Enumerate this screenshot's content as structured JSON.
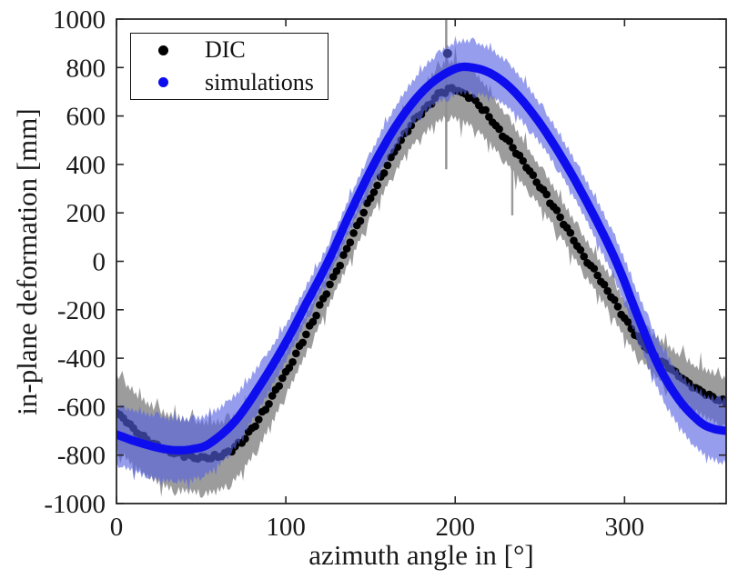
{
  "chart_data": {
    "type": "scatter",
    "title": "",
    "xlabel": "azimuth angle in [°]",
    "ylabel": "in-plane deformation [mm]",
    "xlim": [
      0,
      360
    ],
    "ylim": [
      -1000,
      1000
    ],
    "x_ticks": [
      0,
      100,
      200,
      300
    ],
    "y_ticks": [
      1000,
      800,
      600,
      400,
      200,
      0,
      -200,
      -400,
      -600,
      -800,
      -1000
    ],
    "grid": false,
    "axis_color": "#262626",
    "legend": {
      "position": "top-left",
      "items": [
        {
          "label": "DIC",
          "marker_color": "#000000"
        },
        {
          "label": "simulations",
          "marker_color": "#0d0dee"
        }
      ]
    },
    "series": [
      {
        "name": "DIC",
        "style": "dots-with-noisy-band",
        "color": "#000000",
        "band_color": "#9c9c9c",
        "mean_points": [
          [
            0,
            -620
          ],
          [
            10,
            -690
          ],
          [
            20,
            -745
          ],
          [
            32,
            -785
          ],
          [
            45,
            -805
          ],
          [
            58,
            -808
          ],
          [
            70,
            -770
          ],
          [
            85,
            -640
          ],
          [
            100,
            -460
          ],
          [
            112,
            -300
          ],
          [
            125,
            -115
          ],
          [
            140,
            110
          ],
          [
            155,
            330
          ],
          [
            170,
            520
          ],
          [
            182,
            630
          ],
          [
            195,
            708
          ],
          [
            205,
            690
          ],
          [
            215,
            638
          ],
          [
            230,
            505
          ],
          [
            245,
            360
          ],
          [
            260,
            205
          ],
          [
            275,
            35
          ],
          [
            290,
            -120
          ],
          [
            305,
            -290
          ],
          [
            318,
            -390
          ],
          [
            330,
            -460
          ],
          [
            343,
            -530
          ],
          [
            352,
            -560
          ],
          [
            360,
            -585
          ]
        ],
        "band_halfwidth": [
          [
            0,
            160
          ],
          [
            30,
            155
          ],
          [
            60,
            145
          ],
          [
            90,
            105
          ],
          [
            120,
            75
          ],
          [
            150,
            78
          ],
          [
            180,
            100
          ],
          [
            200,
            120
          ],
          [
            220,
            110
          ],
          [
            250,
            85
          ],
          [
            280,
            75
          ],
          [
            310,
            80
          ],
          [
            340,
            95
          ],
          [
            360,
            105
          ]
        ]
      },
      {
        "name": "simulations",
        "style": "line-with-noisy-band",
        "color": "#0d0dee",
        "band_color": "rgba(86,97,226,0.62)",
        "mean_points": [
          [
            0,
            -715
          ],
          [
            12,
            -745
          ],
          [
            25,
            -770
          ],
          [
            35,
            -780
          ],
          [
            45,
            -775
          ],
          [
            55,
            -752
          ],
          [
            70,
            -660
          ],
          [
            85,
            -510
          ],
          [
            100,
            -335
          ],
          [
            112,
            -175
          ],
          [
            125,
            0
          ],
          [
            140,
            230
          ],
          [
            155,
            440
          ],
          [
            170,
            610
          ],
          [
            185,
            730
          ],
          [
            200,
            795
          ],
          [
            210,
            800
          ],
          [
            222,
            772
          ],
          [
            235,
            700
          ],
          [
            250,
            570
          ],
          [
            265,
            405
          ],
          [
            280,
            215
          ],
          [
            295,
            0
          ],
          [
            308,
            -230
          ],
          [
            320,
            -430
          ],
          [
            332,
            -570
          ],
          [
            344,
            -660
          ],
          [
            352,
            -690
          ],
          [
            360,
            -700
          ]
        ],
        "band_halfwidth": [
          [
            0,
            125
          ],
          [
            30,
            135
          ],
          [
            60,
            120
          ],
          [
            90,
            85
          ],
          [
            120,
            70
          ],
          [
            150,
            75
          ],
          [
            180,
            95
          ],
          [
            205,
            112
          ],
          [
            230,
            95
          ],
          [
            260,
            80
          ],
          [
            290,
            90
          ],
          [
            320,
            105
          ],
          [
            345,
            125
          ],
          [
            360,
            135
          ]
        ]
      }
    ],
    "outliers": [
      {
        "series": "DIC",
        "x": 195.5,
        "y": 858
      }
    ],
    "artifact_spikes": [
      {
        "x": 194.7,
        "y_from": 1000,
        "y_to": 380,
        "color": "#909090"
      },
      {
        "x": 233.7,
        "y_from": 445,
        "y_to": 190,
        "color": "#9a9a9a"
      }
    ]
  }
}
